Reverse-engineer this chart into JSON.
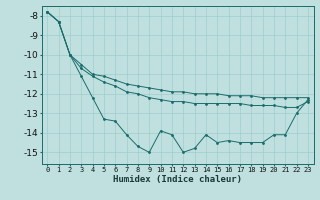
{
  "xlabel": "Humidex (Indice chaleur)",
  "background_color": "#c0e0e0",
  "grid_color": "#a0cccc",
  "line_color": "#1a6b6b",
  "xlim": [
    -0.5,
    23.5
  ],
  "ylim": [
    -15.6,
    -7.5
  ],
  "yticks": [
    -8,
    -9,
    -10,
    -11,
    -12,
    -13,
    -14,
    -15
  ],
  "xticks": [
    0,
    1,
    2,
    3,
    4,
    5,
    6,
    7,
    8,
    9,
    10,
    11,
    12,
    13,
    14,
    15,
    16,
    17,
    18,
    19,
    20,
    21,
    22,
    23
  ],
  "series": [
    {
      "x": [
        0,
        1,
        2,
        3,
        4,
        5,
        6,
        7,
        8,
        9,
        10,
        11,
        12,
        13,
        14,
        15,
        16,
        17,
        18,
        19,
        20,
        21,
        22,
        23
      ],
      "y": [
        -7.8,
        -8.3,
        -10.0,
        -11.1,
        -12.2,
        -13.3,
        -13.4,
        -14.1,
        -14.7,
        -15.0,
        -13.9,
        -14.1,
        -15.0,
        -14.8,
        -14.1,
        -14.5,
        -14.4,
        -14.5,
        -14.5,
        -14.5,
        -14.1,
        -14.1,
        -13.0,
        -12.3
      ]
    },
    {
      "x": [
        0,
        1,
        2,
        3,
        4,
        5,
        6,
        7,
        8,
        9,
        10,
        11,
        12,
        13,
        14,
        15,
        16,
        17,
        18,
        19,
        20,
        21,
        22,
        23
      ],
      "y": [
        -7.8,
        -8.3,
        -10.0,
        -10.5,
        -11.0,
        -11.1,
        -11.3,
        -11.5,
        -11.6,
        -11.7,
        -11.8,
        -11.9,
        -11.9,
        -12.0,
        -12.0,
        -12.0,
        -12.1,
        -12.1,
        -12.1,
        -12.2,
        -12.2,
        -12.2,
        -12.2,
        -12.2
      ]
    },
    {
      "x": [
        0,
        1,
        2,
        3,
        4,
        5,
        6,
        7,
        8,
        9,
        10,
        11,
        12,
        13,
        14,
        15,
        16,
        17,
        18,
        19,
        20,
        21,
        22,
        23
      ],
      "y": [
        -7.8,
        -8.3,
        -10.0,
        -10.7,
        -11.1,
        -11.4,
        -11.6,
        -11.9,
        -12.0,
        -12.2,
        -12.3,
        -12.4,
        -12.4,
        -12.5,
        -12.5,
        -12.5,
        -12.5,
        -12.5,
        -12.6,
        -12.6,
        -12.6,
        -12.7,
        -12.7,
        -12.4
      ]
    }
  ]
}
